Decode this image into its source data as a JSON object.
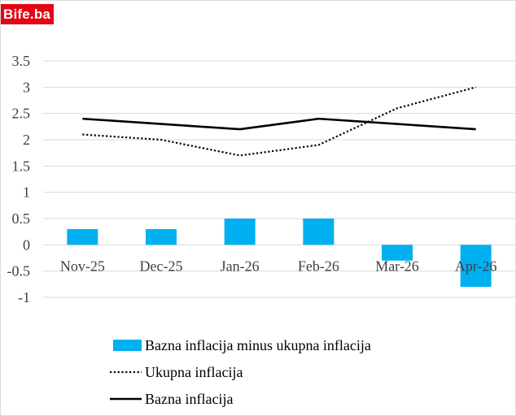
{
  "logo": {
    "text": "Bife.ba",
    "color": "#e30613"
  },
  "chart_data": {
    "type": "bar",
    "title": "",
    "xlabel": "",
    "ylabel": "",
    "categories": [
      "Nov-25",
      "Dec-25",
      "Jan-26",
      "Feb-26",
      "Mar-26",
      "Apr-26"
    ],
    "ylim": [
      -1,
      3.5
    ],
    "yticks": [
      3.5,
      3,
      2.5,
      2,
      1.5,
      1,
      0.5,
      0,
      -0.5,
      -1
    ],
    "ytick_labels": [
      "3.5",
      "3",
      "2.5",
      "2",
      "1.5",
      "1",
      "0.5",
      "0",
      "-0.5",
      "-1"
    ],
    "grid": "horizontal",
    "legend_position": "bottom",
    "series": [
      {
        "name": "Bazna inflacija minus ukupna inflacija",
        "kind": "bar",
        "style": "solid",
        "color": "#00b0f0",
        "values": [
          0.3,
          0.3,
          0.5,
          0.5,
          -0.3,
          -0.8
        ]
      },
      {
        "name": "Ukupna inflacija",
        "kind": "line",
        "style": "dotted",
        "color": "#000000",
        "values": [
          2.1,
          2.0,
          1.7,
          1.9,
          2.6,
          3.0
        ]
      },
      {
        "name": "Bazna inflacija",
        "kind": "line",
        "style": "solid",
        "color": "#000000",
        "values": [
          2.4,
          2.3,
          2.2,
          2.4,
          2.3,
          2.2
        ]
      }
    ]
  }
}
